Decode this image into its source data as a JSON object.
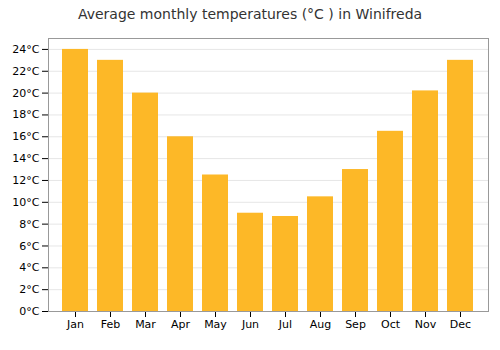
{
  "chart_data": {
    "type": "bar",
    "title": "Average monthly temperatures (°C ) in Winifreda",
    "categories": [
      "Jan",
      "Feb",
      "Mar",
      "Apr",
      "May",
      "Jun",
      "Jul",
      "Aug",
      "Sep",
      "Oct",
      "Nov",
      "Dec"
    ],
    "values": [
      24.0,
      23.0,
      20.0,
      16.0,
      12.5,
      9.0,
      8.7,
      10.5,
      13.0,
      16.5,
      20.2,
      23.0
    ],
    "color": "#FDB827",
    "ylim": [
      0,
      25
    ],
    "yticks": [
      {
        "value": 0,
        "label": "0°C"
      },
      {
        "value": 2,
        "label": "2°C"
      },
      {
        "value": 4,
        "label": "4°C"
      },
      {
        "value": 6,
        "label": "6°C"
      },
      {
        "value": 8,
        "label": "8°C"
      },
      {
        "value": 10,
        "label": "10°C"
      },
      {
        "value": 12,
        "label": "12°C"
      },
      {
        "value": 14,
        "label": "14°C"
      },
      {
        "value": 16,
        "label": "16°C"
      },
      {
        "value": 18,
        "label": "18°C"
      },
      {
        "value": 20,
        "label": "20°C"
      },
      {
        "value": 22,
        "label": "22°C"
      },
      {
        "value": 24,
        "label": "24°C"
      }
    ],
    "grid": true
  }
}
